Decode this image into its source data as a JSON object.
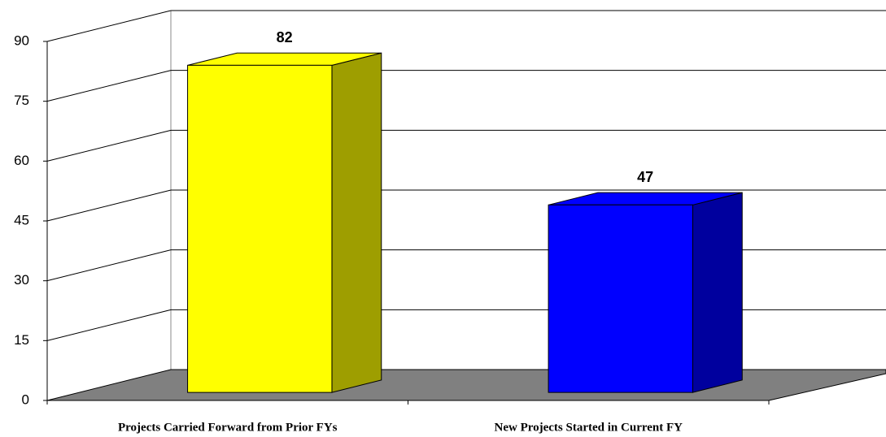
{
  "chart_data": {
    "type": "bar3d",
    "categories": [
      "Projects Carried Forward from Prior FYs",
      "New Projects Started in Current FY"
    ],
    "values": [
      82,
      47
    ],
    "colors": [
      "#ffff00",
      "#0000ff"
    ],
    "ylim": [
      0,
      90
    ],
    "yticks": [
      0,
      15,
      30,
      45,
      60,
      75,
      90
    ],
    "grid": true
  }
}
